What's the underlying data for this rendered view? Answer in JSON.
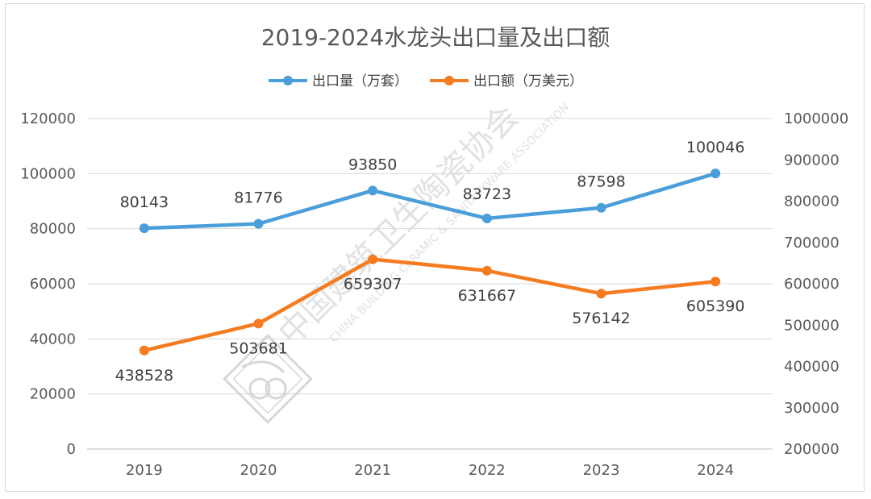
{
  "chart_data": {
    "type": "line",
    "title": "2019-2024水龙头出口量及出口额",
    "categories": [
      "2019",
      "2020",
      "2021",
      "2022",
      "2023",
      "2024"
    ],
    "series": [
      {
        "name": "出口量（万套）",
        "axis": "left",
        "color": "#4a9fda",
        "values": [
          80143,
          81776,
          93850,
          83723,
          87598,
          100046
        ],
        "labels": [
          "80143",
          "81776",
          "93850",
          "83723",
          "87598",
          "100046"
        ]
      },
      {
        "name": "出口额（万美元）",
        "axis": "right",
        "color": "#f47b20",
        "values": [
          438528,
          503681,
          659307,
          631667,
          576142,
          605390
        ],
        "labels": [
          "438528",
          "503681",
          "659307",
          "631667",
          "576142",
          "605390"
        ]
      }
    ],
    "y_left": {
      "min": 0,
      "max": 120000,
      "ticks": [
        "0",
        "20000",
        "40000",
        "60000",
        "80000",
        "100000",
        "120000"
      ]
    },
    "y_right": {
      "min": 200000,
      "max": 1000000,
      "ticks": [
        "200000",
        "300000",
        "400000",
        "500000",
        "600000",
        "700000",
        "800000",
        "900000",
        "1000000"
      ]
    },
    "grid": true,
    "legend": "top-center"
  },
  "watermark": {
    "chinese": "中国建筑卫生陶瓷协会",
    "english": "CHINA BUILDING CERAMIC & SANITARYWARE ASSOCIATION"
  }
}
